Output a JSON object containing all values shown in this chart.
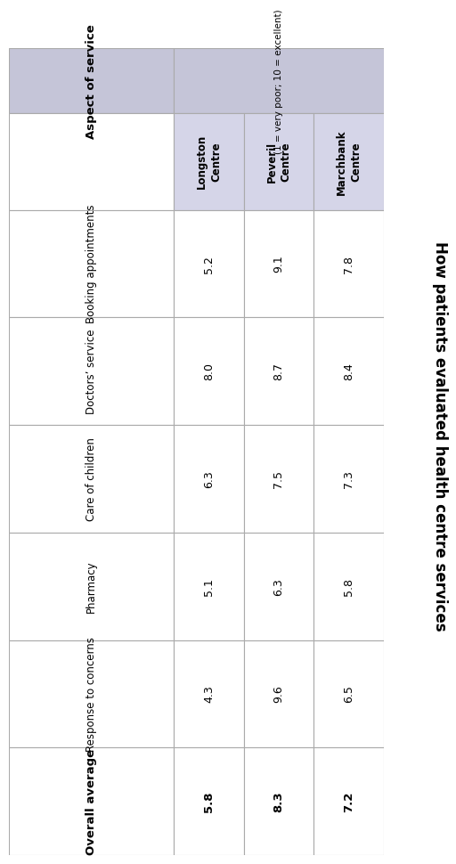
{
  "title": "How patients evaluated health centre services",
  "aspect_header": "Aspect of service",
  "scale_note": "(1 = very poor; 10 = excellent)",
  "sub_headers": [
    "Longston\nCentre",
    "Peveril\nCentre",
    "Marchbank\nCentre"
  ],
  "row_labels": [
    "Booking appointments",
    "Doctors’ service",
    "Care of children",
    "Pharmacy",
    "Response to concerns",
    "Overall average"
  ],
  "longston": [
    5.2,
    8.0,
    6.3,
    5.1,
    4.3,
    5.8
  ],
  "peveril": [
    9.1,
    8.7,
    7.5,
    6.3,
    9.6,
    8.3
  ],
  "marchbank": [
    7.8,
    8.4,
    7.3,
    5.8,
    6.5,
    7.2
  ],
  "header_bg": "#c5c5d8",
  "subheader_bg": "#d5d5e8",
  "white": "#ffffff",
  "border_color": "#aaaaaa",
  "title_fontsize": 12,
  "header_fontsize": 9.5,
  "data_fontsize": 9,
  "label_fontsize": 8.5,
  "overall_fontsize": 9.5
}
